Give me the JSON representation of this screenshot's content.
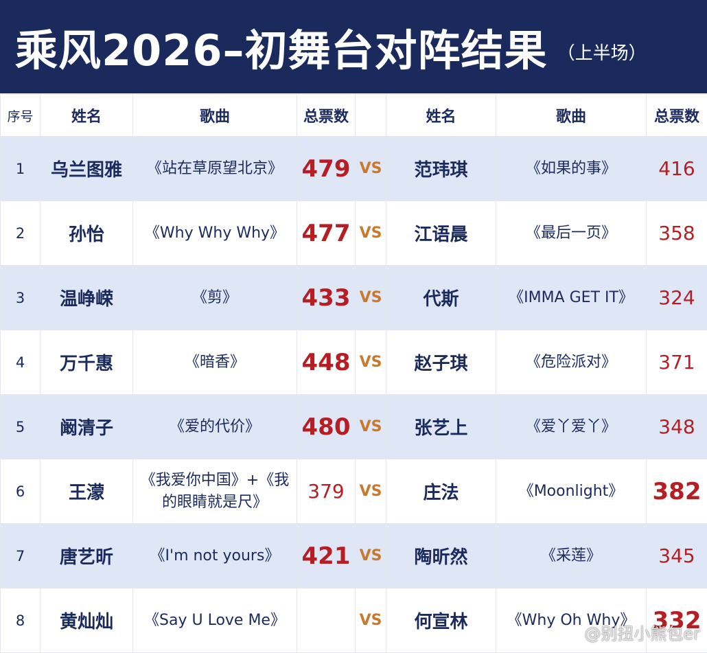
{
  "header": {
    "title": "乘风2026–初舞台对阵结果",
    "subtitle": "（上半场）"
  },
  "columns": {
    "seq": "序号",
    "name_left": "姓名",
    "song_left": "歌曲",
    "votes_left": "总票数",
    "name_right": "姓名",
    "song_right": "歌曲",
    "votes_right": "总票数"
  },
  "vs_label": "VS",
  "rows": [
    {
      "seq": "1",
      "left_name": "乌兰图雅",
      "left_song": "《站在草原望北京》",
      "left_votes": "479",
      "right_name": "范玮琪",
      "right_song": "《如果的事》",
      "right_votes": "416"
    },
    {
      "seq": "2",
      "left_name": "孙怡",
      "left_song": "《Why Why Why》",
      "left_votes": "477",
      "right_name": "江语晨",
      "right_song": "《最后一页》",
      "right_votes": "358"
    },
    {
      "seq": "3",
      "left_name": "温峥嵘",
      "left_song": "《剪》",
      "left_votes": "433",
      "right_name": "代斯",
      "right_song": "《IMMA GET IT》",
      "right_votes": "324"
    },
    {
      "seq": "4",
      "left_name": "万千惠",
      "left_song": "《暗香》",
      "left_votes": "448",
      "right_name": "赵子琪",
      "right_song": "《危险派对》",
      "right_votes": "371"
    },
    {
      "seq": "5",
      "left_name": "阚清子",
      "left_song": "《爱的代价》",
      "left_votes": "480",
      "right_name": "张艺上",
      "right_song": "《爱丫爱丫》",
      "right_votes": "348"
    },
    {
      "seq": "6",
      "left_name": "王濛",
      "left_song": "《我爱你中国》+《我的眼睛就是尺》",
      "left_votes": "379",
      "right_name": "庄法",
      "right_song": "《Moonlight》",
      "right_votes": "382"
    },
    {
      "seq": "7",
      "left_name": "唐艺昕",
      "left_song": "《I'm not yours》",
      "left_votes": "421",
      "right_name": "陶昕然",
      "right_song": "《采莲》",
      "right_votes": "345"
    },
    {
      "seq": "8",
      "left_name": "黄灿灿",
      "left_song": "《Say U Love Me》",
      "left_votes": "",
      "right_name": "何宣林",
      "right_song": "《Why Oh Why》",
      "right_votes": "332"
    }
  ],
  "watermark": "@别扭小熊包er",
  "colors": {
    "header_bg": "#1b2a5c",
    "text_navy": "#1b2a5c",
    "votes_red": "#b51f23",
    "vs_orange": "#c8792e",
    "row_stripe": "#dfe7f6"
  }
}
